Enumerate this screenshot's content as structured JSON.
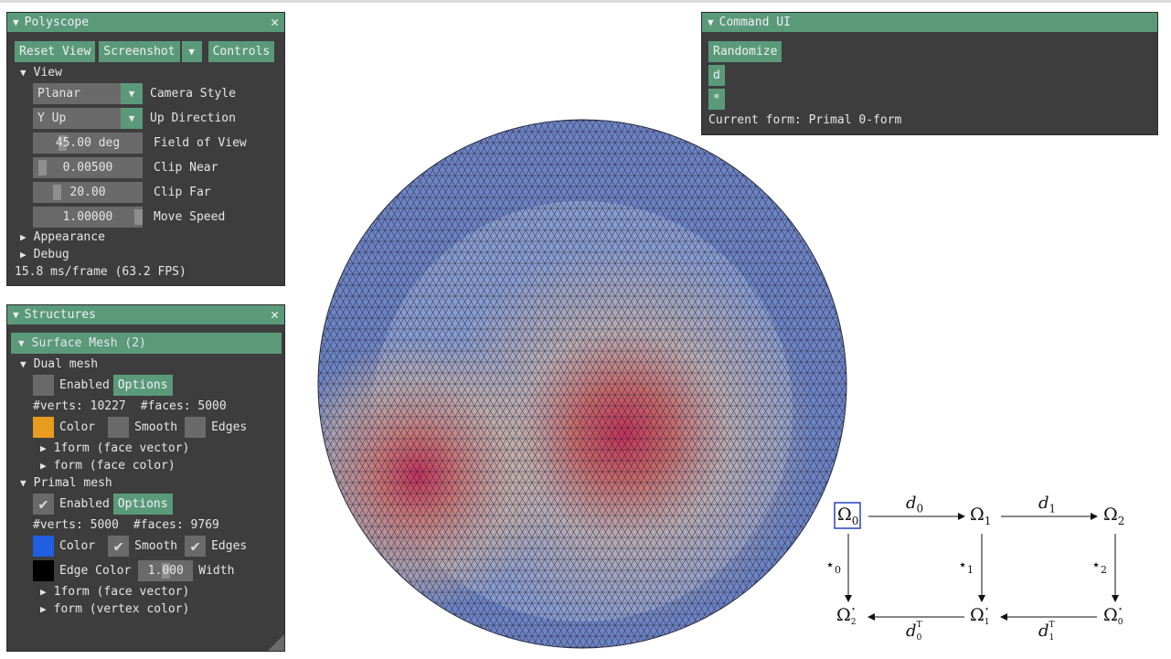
{
  "polyscope": {
    "title": "Polyscope",
    "reset_view": "Reset View",
    "screenshot": "Screenshot",
    "controls": "Controls",
    "view_label": "View",
    "camera_style": {
      "value": "Planar",
      "label": "Camera Style"
    },
    "up_direction": {
      "value": "Y Up",
      "label": "Up Direction"
    },
    "fov": {
      "value": "45.00 deg",
      "label": "Field of View",
      "level": 0.25
    },
    "clip_near": {
      "value": "0.00500",
      "label": "Clip Near",
      "level": 0.05
    },
    "clip_far": {
      "value": "20.00",
      "label": "Clip Far",
      "level": 0.2
    },
    "move_speed": {
      "value": "1.00000",
      "label": "Move Speed",
      "level": 1.0
    },
    "appearance": "Appearance",
    "debug": "Debug",
    "fps": "15.8 ms/frame (63.2 FPS)"
  },
  "structures": {
    "title": "Structures",
    "surface_mesh": "Surface Mesh (2)",
    "dual": {
      "name": "Dual mesh",
      "enabled_label": "Enabled",
      "enabled": false,
      "options": "Options",
      "verts": "#verts: 10227",
      "faces": "#faces: 5000",
      "color_label": "Color",
      "color": "#e79b1f",
      "smooth_label": "Smooth",
      "smooth": false,
      "edges_label": "Edges",
      "edges": false,
      "q1": "1form (face vector)",
      "q2": "form (face color)"
    },
    "primal": {
      "name": "Primal mesh",
      "enabled_label": "Enabled",
      "enabled": true,
      "options": "Options",
      "verts": "#verts: 5000",
      "faces": "#faces: 9769",
      "color_label": "Color",
      "color": "#1f5fe0",
      "smooth_label": "Smooth",
      "smooth": true,
      "edges_label": "Edges",
      "edges": true,
      "edge_color_label": "Edge Color",
      "edge_color": "#000000",
      "width_value": "1.000",
      "width_label": "Width",
      "q1": "1form (face vector)",
      "q2": "form (vertex color)"
    }
  },
  "command_ui": {
    "title": "Command UI",
    "randomize": "Randomize",
    "d": "d",
    "star": "*",
    "current_form": "Current form: Primal 0-form"
  },
  "diagram": {
    "omega0": "Ω",
    "omega1": "Ω",
    "omega2": "Ω",
    "d0": "d",
    "d1": "d",
    "star0": "⋆",
    "star1": "⋆",
    "star2": "⋆",
    "dual2": "Ω",
    "dual1": "Ω",
    "dual0": "Ω",
    "dT0": "d",
    "dT1": "d"
  },
  "colors": {
    "accent": "#5a9a7a",
    "panel": "#3d3d3d",
    "mesh_low": "#6d84c5",
    "mesh_high": "#c2335a"
  }
}
